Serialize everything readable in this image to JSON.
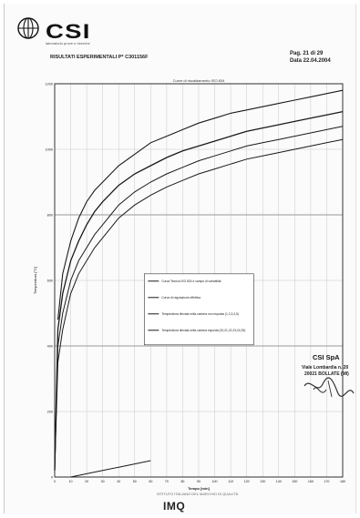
{
  "header": {
    "brand": "CSI",
    "brand_subtitle": "laboratorio prove e ricerche",
    "report_title": "RISULTATI ESPERIMENTALI P* C301156F",
    "page_number": "Pag. 21 di 29",
    "date": "Data 22.04.2004",
    "brand_color": "#111111"
  },
  "chart_data": {
    "type": "line",
    "title": "Curve di riscaldamento ISO 834",
    "xlabel": "Tempo [min]",
    "ylabel": "Temperatura [°C]",
    "xlim": [
      0,
      180
    ],
    "ylim": [
      0,
      1200
    ],
    "xticks": [
      0,
      10,
      20,
      30,
      40,
      50,
      60,
      70,
      80,
      90,
      100,
      110,
      120,
      130,
      140,
      150,
      160,
      170,
      180
    ],
    "yticks": [
      0,
      200,
      400,
      600,
      800,
      1000,
      1200
    ],
    "grid": true,
    "legend_position": "center",
    "series": [
      {
        "name": "Curva Teorica ISO 834 e campo di variabilità",
        "x": [
          2,
          5,
          10,
          15,
          20,
          25,
          30,
          40,
          50,
          60,
          70,
          80,
          90,
          100,
          110,
          120,
          130,
          140,
          150,
          160,
          170,
          180
        ],
        "y": [
          480,
          620,
          720,
          790,
          840,
          875,
          900,
          950,
          985,
          1020,
          1040,
          1060,
          1080,
          1095,
          1110,
          1120,
          1130,
          1140,
          1150,
          1160,
          1170,
          1180
        ]
      },
      {
        "name": "Curva di regolazione effettiva",
        "x": [
          0,
          2,
          5,
          10,
          15,
          20,
          25,
          30,
          40,
          50,
          60,
          70,
          80,
          90,
          100,
          110,
          120,
          130,
          140,
          150,
          160,
          170,
          180
        ],
        "y": [
          20,
          450,
          560,
          660,
          720,
          770,
          810,
          840,
          890,
          925,
          950,
          975,
          995,
          1010,
          1025,
          1040,
          1055,
          1065,
          1075,
          1085,
          1095,
          1105,
          1115
        ]
      },
      {
        "name": "Temperatura rilevata nella camera non esposta (1,2,3,4,5)",
        "x": [
          0,
          2,
          5,
          10,
          15,
          20,
          25,
          30,
          40,
          50,
          60,
          70,
          80,
          90,
          100,
          110,
          120,
          130,
          140,
          150,
          160,
          170,
          180
        ],
        "y": [
          20,
          400,
          500,
          600,
          660,
          700,
          740,
          770,
          830,
          870,
          900,
          925,
          945,
          965,
          980,
          995,
          1010,
          1020,
          1030,
          1040,
          1050,
          1060,
          1070
        ]
      },
      {
        "name": "Temperatura rilevata nella camera esposta (20,21,22,23,24,25)",
        "x": [
          0,
          2,
          5,
          10,
          15,
          20,
          25,
          30,
          40,
          50,
          60,
          70,
          80,
          90,
          100,
          110,
          120,
          130,
          140,
          150,
          160,
          170,
          180
        ],
        "y": [
          20,
          350,
          450,
          560,
          620,
          660,
          700,
          730,
          790,
          830,
          860,
          885,
          905,
          925,
          940,
          955,
          970,
          980,
          990,
          1000,
          1010,
          1020,
          1030
        ]
      },
      {
        "name": "",
        "x": [
          10,
          20,
          30,
          40,
          50,
          60
        ],
        "y": [
          0,
          10,
          20,
          30,
          40,
          50
        ]
      }
    ]
  },
  "stamp": {
    "name": "CSI SpA",
    "line1": "Viale Lombardia n. 20",
    "line2": "20021 BOLLATE (MI)"
  },
  "footer": {
    "logo_text": "IMQ",
    "subtitle": "ISTITUTO ITALIANO DEL MARCHIO DI QUALITÀ"
  }
}
